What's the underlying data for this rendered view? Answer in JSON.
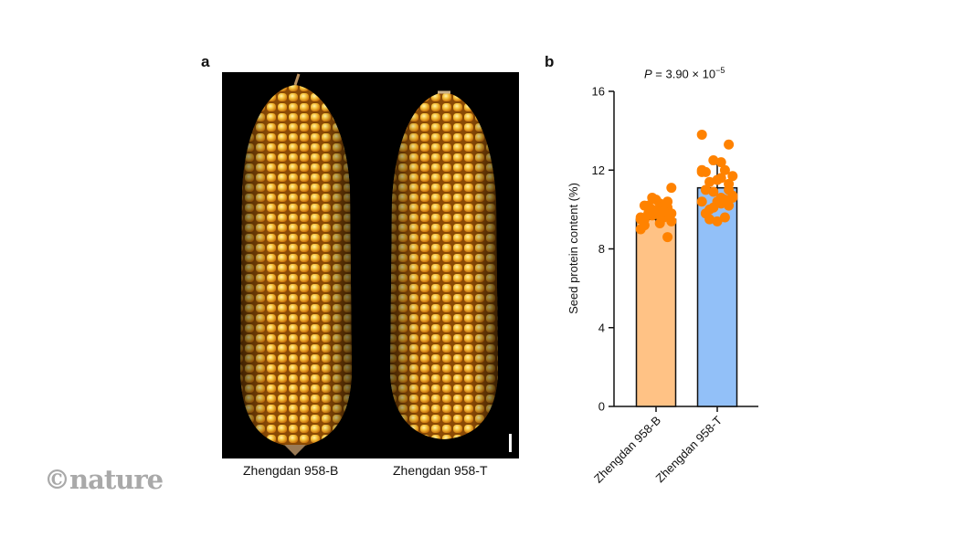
{
  "panel_a": {
    "label": "a",
    "captions": [
      "Zhengdan 958-B",
      "Zhengdan 958-T"
    ],
    "scale_bar": true
  },
  "panel_b": {
    "label": "b",
    "annotation": "P = 3.90 × 10",
    "annotation_exp": "−5"
  },
  "watermark": "©nature",
  "colors": {
    "bar_b": "#ffc285",
    "bar_t": "#92c0f8",
    "points": "#ff8200",
    "kernel": "#f0a818"
  },
  "chart_data": {
    "type": "bar",
    "title": "P = 3.90 × 10^-5",
    "xlabel": "",
    "ylabel": "Seed protein content (%)",
    "ylim": [
      0,
      16
    ],
    "yticks": [
      0,
      4,
      8,
      12,
      16
    ],
    "categories": [
      "Zhengdan 958-B",
      "Zhengdan 958-T"
    ],
    "values": [
      9.5,
      11.1
    ],
    "error_upper": [
      9.8,
      12.3
    ],
    "error_lower": [
      9.2,
      10.0
    ],
    "points": [
      [
        9.6,
        10.1,
        10.3,
        9.7,
        10.2,
        9.4,
        9.9,
        10.5,
        9.8,
        9.5,
        10.4,
        9.3,
        10.0,
        9.2,
        11.1,
        9.6,
        9.9,
        10.2,
        9.0,
        8.6,
        9.7,
        10.6,
        9.5,
        9.8,
        9.9
      ],
      [
        13.8,
        13.3,
        12.4,
        12.5,
        11.9,
        11.7,
        12.0,
        11.5,
        11.4,
        11.9,
        11.0,
        11.6,
        10.9,
        11.0,
        10.7,
        10.5,
        10.4,
        10.0,
        10.4,
        10.2,
        10.3,
        10.1,
        9.8,
        10.6,
        9.6,
        9.4,
        9.5,
        12.0,
        11.3,
        10.6
      ]
    ],
    "grid": false,
    "legend": null
  }
}
